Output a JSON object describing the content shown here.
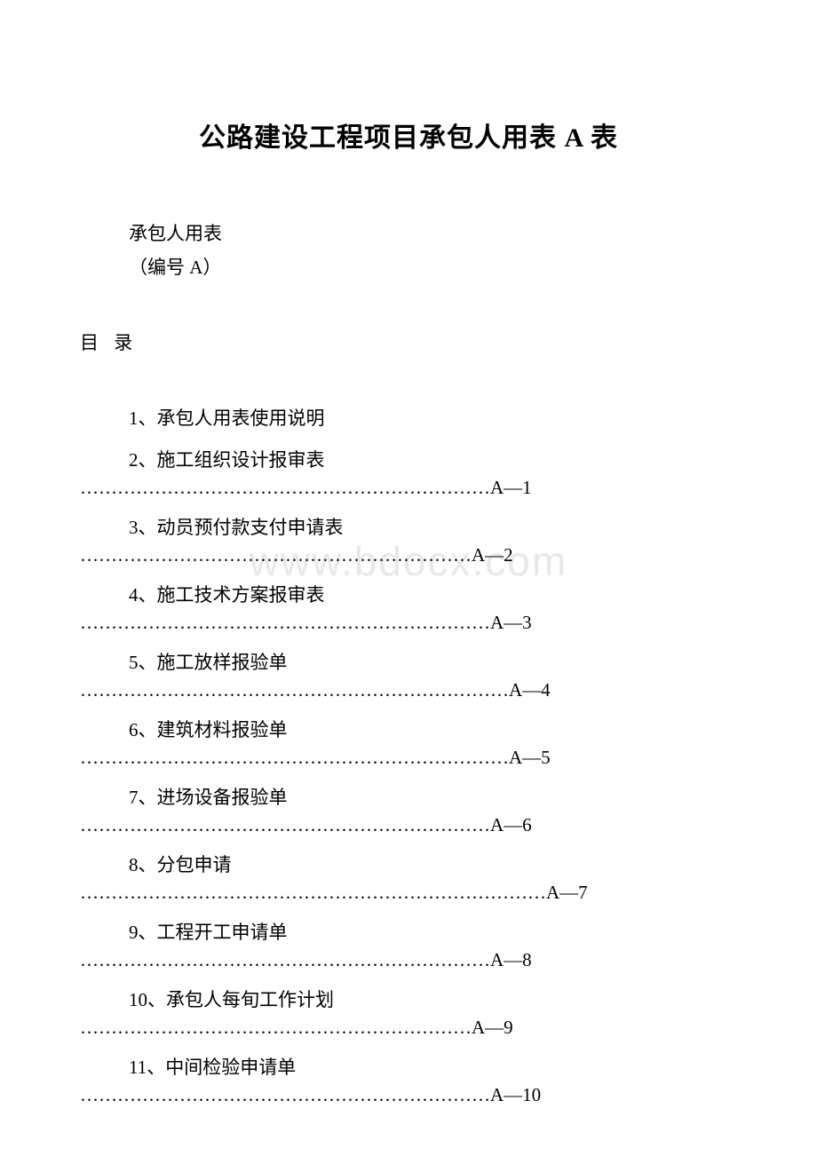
{
  "document": {
    "title": "公路建设工程项目承包人用表 A 表",
    "subtitle_line1": "承包人用表",
    "subtitle_line2": "（编号 A）",
    "toc_heading": "目 录",
    "watermark": "www.bdocx.com",
    "background_color": "#ffffff",
    "text_color": "#000000",
    "watermark_color": "#e8e8e8",
    "title_fontsize": 30,
    "body_fontsize": 21,
    "toc_items": [
      {
        "num": "1",
        "label": "承包人用表使用说明",
        "ref": ""
      },
      {
        "num": "2",
        "label": "施工组织设计报审表",
        "ref": "A—1"
      },
      {
        "num": "3",
        "label": "动员预付款支付申请表",
        "ref": "A—2"
      },
      {
        "num": "4",
        "label": "施工技术方案报审表",
        "ref": "A—3"
      },
      {
        "num": "5",
        "label": "施工放样报验单",
        "ref": "A—4"
      },
      {
        "num": "6",
        "label": "建筑材料报验单",
        "ref": "A—5"
      },
      {
        "num": "7",
        "label": "进场设备报验单",
        "ref": "A—6"
      },
      {
        "num": "8",
        "label": "分包申请",
        "ref": "A—7"
      },
      {
        "num": "9",
        "label": "工程开工申请单",
        "ref": "A—8"
      },
      {
        "num": "10",
        "label": "承包人每旬工作计划",
        "ref": "A—9"
      },
      {
        "num": "11",
        "label": "中间检验申请单",
        "ref": "A—10"
      }
    ],
    "dot_leaders": {
      "1": "…………………………………………………………",
      "2": "………………………………………………………",
      "3": "…………………………………………………………",
      "4": "……………………………………………………………",
      "5": "……………………………………………………………",
      "6": "…………………………………………………………",
      "7": "…………………………………………………………………",
      "8": "…………………………………………………………",
      "9": "………………………………………………………",
      "10": "…………………………………………………………"
    }
  }
}
